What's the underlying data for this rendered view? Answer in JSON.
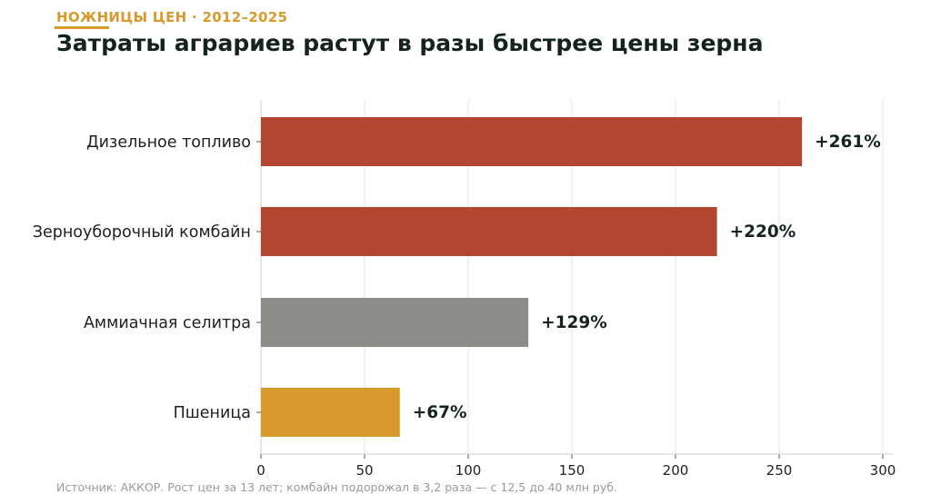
{
  "header": {
    "kicker": "НОЖНИЦЫ ЦЕН · 2012–2025",
    "title": "Затраты аграриев растут в разы быстрее цены зерна"
  },
  "chart_data": {
    "type": "bar",
    "orientation": "horizontal",
    "categories": [
      "Дизельное топливо",
      "Зерноуборочный комбайн",
      "Аммиачная селитра",
      "Пшеница"
    ],
    "values": [
      261,
      220,
      129,
      67
    ],
    "value_labels": [
      "+261%",
      "+220%",
      "+129%",
      "+67%"
    ],
    "bar_colors": [
      "#b34630",
      "#b34630",
      "#8a8e87",
      "#d89a2b"
    ],
    "xlim": [
      0,
      300
    ],
    "x_ticks": [
      0,
      50,
      100,
      150,
      200,
      250,
      300
    ],
    "grid": "vertical",
    "xlabel": "",
    "ylabel": ""
  },
  "footer": {
    "source": "Источник: АККОР. Рост цен за 13 лет; комбайн подорожал в 3,2 раза — с 12,5 до 40 млн руб."
  }
}
